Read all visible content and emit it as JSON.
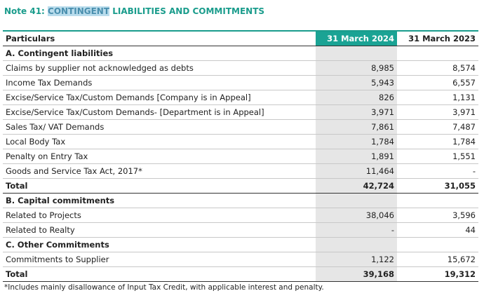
{
  "header": {
    "title_parts": [
      "Note 41: ",
      "CONTINGENT",
      " LIABILITIES AND COMMITMENTS"
    ]
  },
  "table": {
    "columns": [
      "Particulars",
      "31 March 2024",
      "31 March 2023"
    ],
    "sections": [
      {
        "heading": "A. Contingent liabilities",
        "rows": [
          [
            "Claims by supplier not acknowledged as debts",
            "8,985",
            "8,574"
          ],
          [
            "Income Tax Demands",
            "5,943",
            "6,557"
          ],
          [
            "Excise/Service Tax/Custom Demands [Company is in Appeal]",
            "826",
            "1,131"
          ],
          [
            "Excise/Service Tax/Custom Demands- [Department is in Appeal]",
            "3,971",
            "3,971"
          ],
          [
            "Sales Tax/ VAT Demands",
            "7,861",
            "7,487"
          ],
          [
            "Local Body Tax",
            "1,784",
            "1,784"
          ],
          [
            "Penalty on Entry Tax",
            "1,891",
            "1,551"
          ],
          [
            "Goods and Service Tax Act, 2017*",
            "11,464",
            "-"
          ]
        ],
        "total": [
          "Total",
          "42,724",
          "31,055"
        ]
      },
      {
        "heading": "B. Capital commitments",
        "rows": [
          [
            "Related to Projects",
            "38,046",
            "3,596"
          ],
          [
            "Related to Realty",
            "-",
            "44"
          ]
        ]
      },
      {
        "heading": "C. Other Commitments",
        "rows": [
          [
            "Commitments to Supplier",
            "1,122",
            "15,672"
          ]
        ],
        "total": [
          "Total",
          "39,168",
          "19,312"
        ]
      }
    ]
  },
  "footnote": "*Includes mainly disallowance of Input Tax Credit, with applicable interest and penalty."
}
